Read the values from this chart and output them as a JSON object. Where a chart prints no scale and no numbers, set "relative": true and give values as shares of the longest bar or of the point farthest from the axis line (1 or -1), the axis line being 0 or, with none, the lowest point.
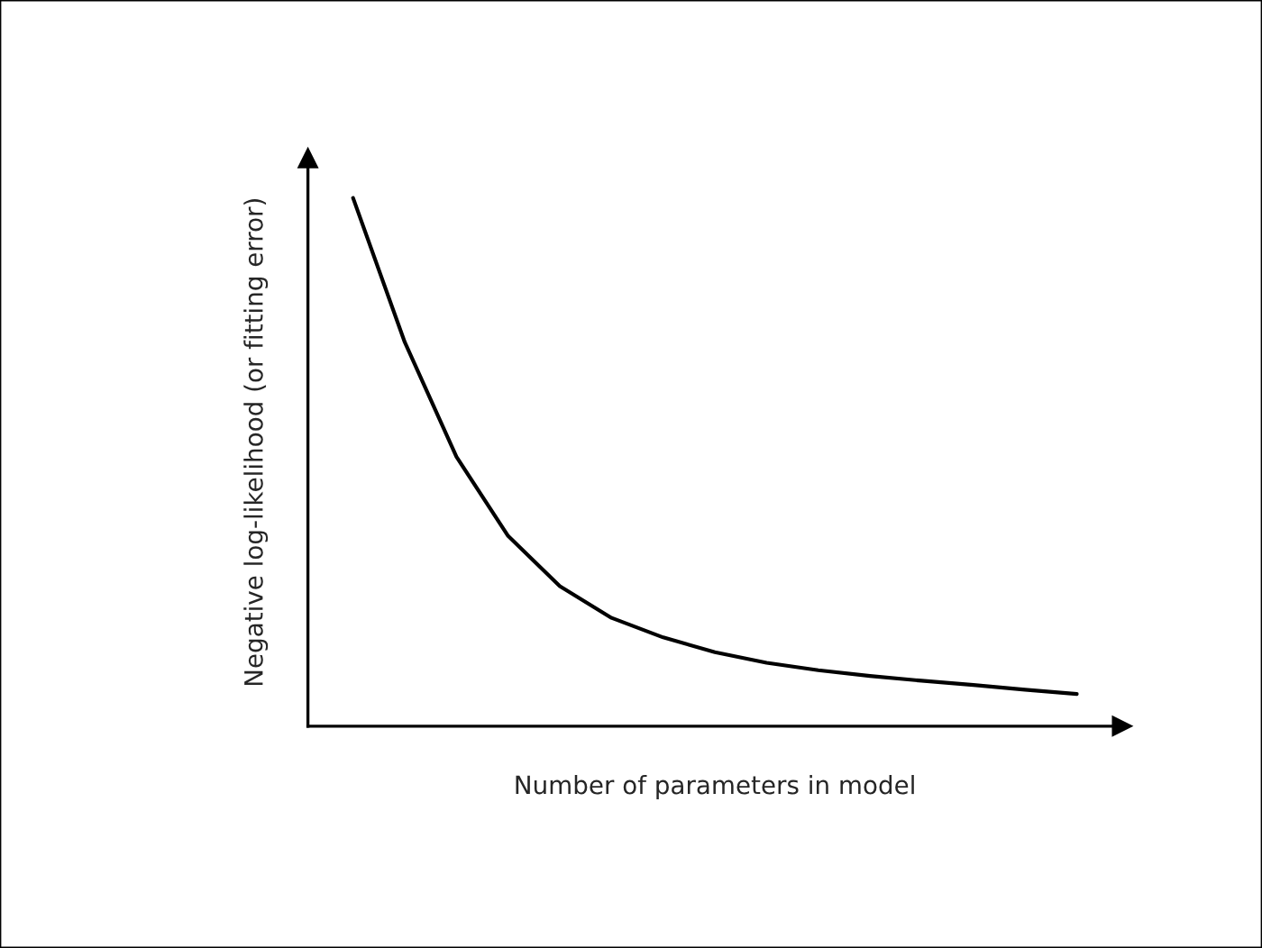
{
  "chart_data": {
    "type": "line",
    "relative": true,
    "xlabel": "Number of parameters in model",
    "ylabel": "Negative log-likelihood (or fitting error)",
    "categories": [
      null,
      null,
      null,
      null,
      null,
      null,
      null,
      null,
      null,
      null,
      null,
      null,
      null,
      null,
      null
    ],
    "series": [
      {
        "color": "#000000",
        "values": [
          1.0,
          0.727,
          0.51,
          0.36,
          0.265,
          0.205,
          0.168,
          0.14,
          0.12,
          0.106,
          0.095,
          0.086,
          0.078,
          0.069,
          0.061
        ]
      }
    ],
    "grid": false,
    "legend": false,
    "marker": "none",
    "line_style": "solid"
  }
}
